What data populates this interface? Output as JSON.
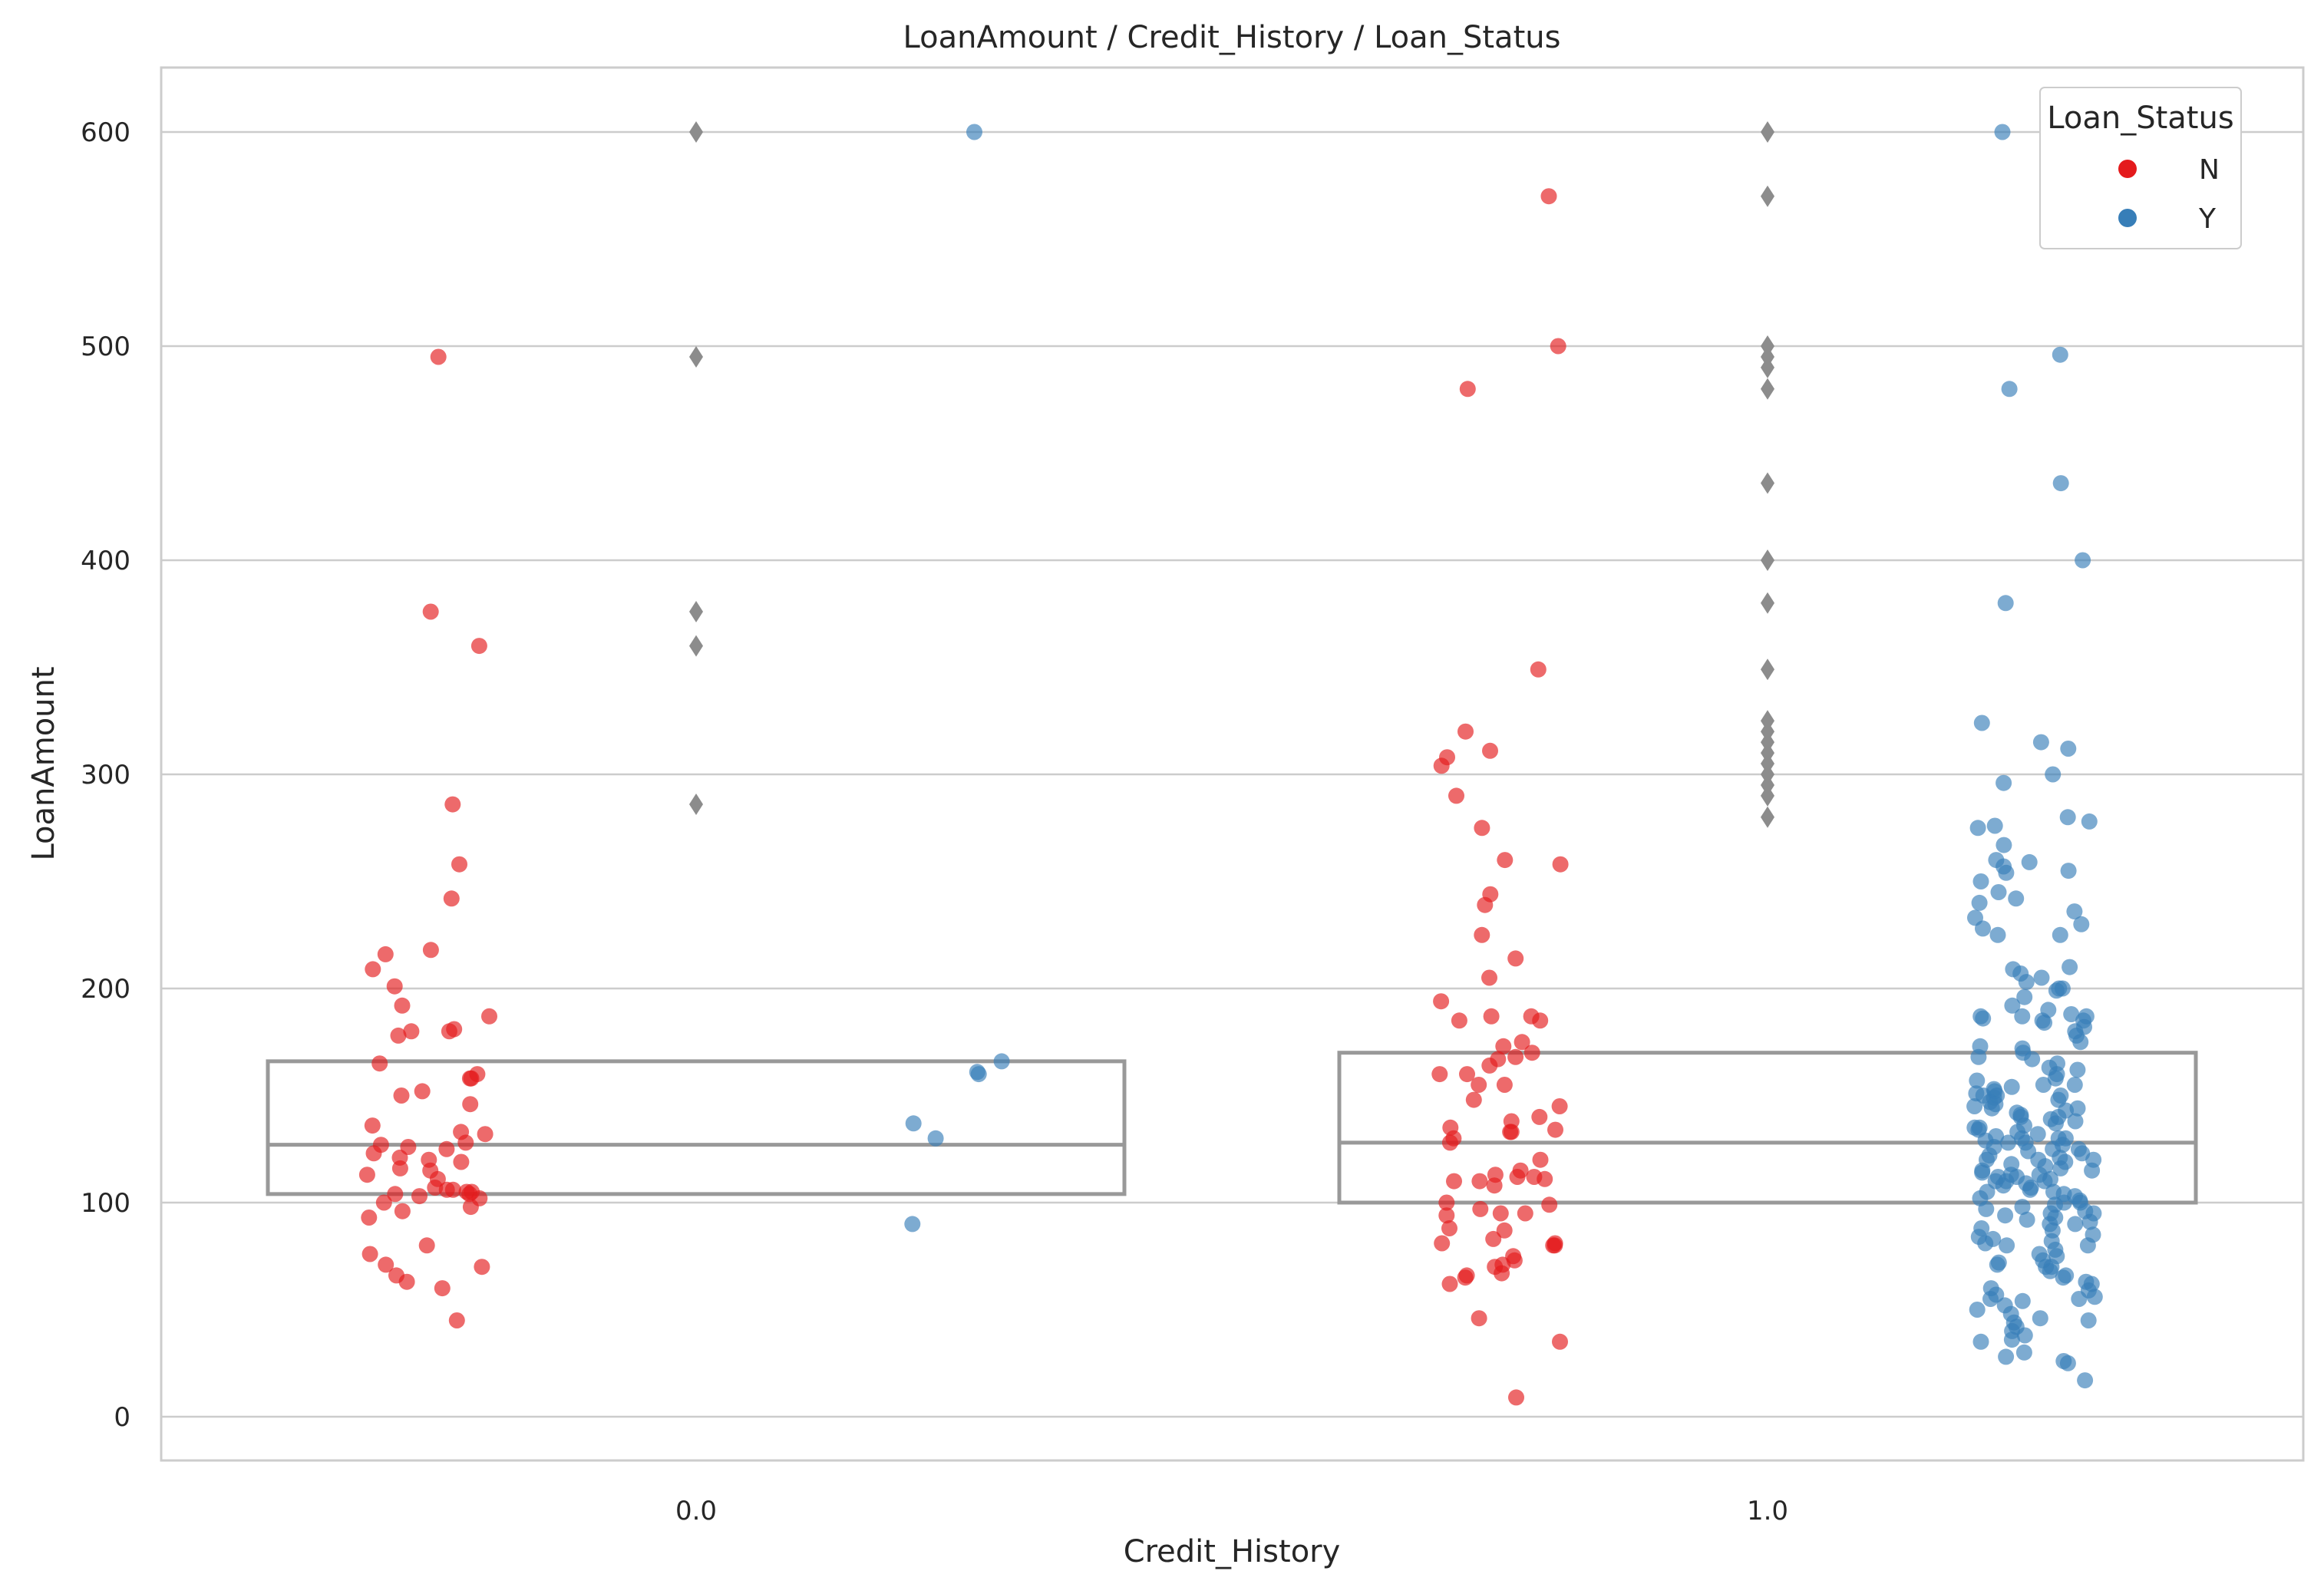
{
  "chart_data": {
    "type": "box+strip",
    "title": "LoanAmount / Credit_History / Loan_Status",
    "xlabel": "Credit_History",
    "ylabel": "LoanAmount",
    "categories": [
      "0.0",
      "1.0"
    ],
    "ylim": [
      -20,
      630
    ],
    "yticks": [
      0,
      100,
      200,
      300,
      400,
      500,
      600
    ],
    "grid": "horizontal",
    "legend": {
      "title": "Loan_Status",
      "position": "top-right",
      "entries": [
        {
          "name": "N",
          "color": "#e41a1c"
        },
        {
          "name": "Y",
          "color": "#377eb8"
        }
      ]
    },
    "boxes": [
      {
        "category": "0.0",
        "q1": 104,
        "median": 127,
        "q3": 166,
        "outliers": [
          600,
          495,
          376,
          360,
          286
        ]
      },
      {
        "category": "1.0",
        "q1": 100,
        "median": 128,
        "q3": 170,
        "outliers": [
          600,
          570,
          500,
          495,
          490,
          480,
          436,
          400,
          380,
          349,
          325,
          320,
          315,
          310,
          305,
          300,
          295,
          290,
          280
        ]
      }
    ],
    "series": [
      {
        "name": "N",
        "category": "0.0",
        "color": "#e41a1c",
        "values": [
          495,
          376,
          360,
          286,
          258,
          242,
          218,
          216,
          209,
          201,
          192,
          187,
          181,
          180,
          180,
          178,
          165,
          160,
          158,
          158,
          152,
          150,
          146,
          136,
          133,
          132,
          128,
          127,
          126,
          125,
          123,
          121,
          120,
          119,
          116,
          115,
          113,
          111,
          107,
          106,
          106,
          105,
          105,
          104,
          104,
          103,
          102,
          100,
          98,
          96,
          93,
          80,
          76,
          71,
          70,
          66,
          63,
          60,
          45
        ]
      },
      {
        "name": "Y",
        "category": "0.0",
        "color": "#377eb8",
        "values": [
          600,
          166,
          161,
          160,
          137,
          130,
          90
        ]
      },
      {
        "name": "N",
        "category": "1.0",
        "color": "#e41a1c",
        "values": [
          570,
          500,
          480,
          349,
          320,
          311,
          308,
          304,
          290,
          275,
          260,
          258,
          244,
          239,
          225,
          214,
          205,
          194,
          187,
          187,
          185,
          185,
          175,
          173,
          170,
          168,
          167,
          164,
          160,
          160,
          155,
          155,
          148,
          145,
          140,
          138,
          135,
          134,
          133,
          133,
          130,
          128,
          120,
          115,
          113,
          112,
          112,
          111,
          110,
          110,
          108,
          100,
          99,
          97,
          95,
          95,
          94,
          88,
          87,
          83,
          81,
          81,
          80,
          80,
          75,
          73,
          71,
          70,
          67,
          66,
          65,
          62,
          46,
          35,
          9
        ]
      },
      {
        "name": "Y",
        "category": "1.0",
        "color": "#377eb8",
        "values": [
          600,
          496,
          480,
          436,
          400,
          380,
          324,
          315,
          312,
          300,
          296,
          280,
          278,
          276,
          275,
          267,
          260,
          259,
          257,
          255,
          254,
          250,
          245,
          242,
          240,
          236,
          233,
          230,
          228,
          225,
          225,
          210,
          209,
          207,
          205,
          203,
          200,
          200,
          199,
          196,
          192,
          190,
          188,
          187,
          187,
          187,
          186,
          185,
          185,
          184,
          182,
          180,
          178,
          175,
          173,
          172,
          170,
          168,
          167,
          165,
          163,
          162,
          160,
          158,
          157,
          155,
          155,
          154,
          153,
          152,
          151,
          150,
          150,
          150,
          149,
          148,
          147,
          146,
          145,
          144,
          144,
          143,
          142,
          141,
          140,
          140,
          139,
          138,
          137,
          136,
          135,
          135,
          134,
          133,
          132,
          131,
          130,
          130,
          130,
          129,
          128,
          128,
          127,
          126,
          125,
          125,
          124,
          123,
          122,
          121,
          120,
          120,
          120,
          119,
          118,
          117,
          116,
          115,
          115,
          114,
          113,
          113,
          112,
          112,
          111,
          110,
          110,
          110,
          109,
          108,
          107,
          106,
          105,
          105,
          104,
          103,
          102,
          101,
          100,
          100,
          99,
          98,
          97,
          96,
          95,
          95,
          94,
          93,
          92,
          91,
          90,
          90,
          88,
          87,
          85,
          84,
          83,
          82,
          81,
          80,
          80,
          78,
          76,
          75,
          73,
          72,
          71,
          70,
          70,
          68,
          66,
          65,
          63,
          62,
          60,
          59,
          57,
          56,
          55,
          55,
          54,
          52,
          50,
          48,
          46,
          45,
          44,
          42,
          40,
          38,
          36,
          35,
          30,
          28,
          26,
          25,
          17
        ]
      }
    ]
  }
}
